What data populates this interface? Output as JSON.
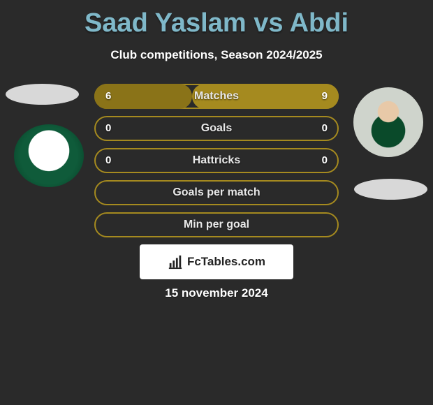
{
  "title": "Saad Yaslam vs Abdi",
  "subtitle": "Club competitions, Season 2024/2025",
  "accent_color": "#a58a1f",
  "accent_fill": "#8a7318",
  "title_color": "#7fb8c9",
  "rows": [
    {
      "label": "Matches",
      "left": "6",
      "right": "9",
      "left_ratio": 0.4
    },
    {
      "label": "Goals",
      "left": "0",
      "right": "0",
      "left_ratio": 0.0
    },
    {
      "label": "Hattricks",
      "left": "0",
      "right": "0",
      "left_ratio": 0.0
    },
    {
      "label": "Goals per match",
      "left": "",
      "right": "",
      "left_ratio": 0.0
    },
    {
      "label": "Min per goal",
      "left": "",
      "right": "",
      "left_ratio": 0.0
    }
  ],
  "brand": "FcTables.com",
  "date": "15 november 2024"
}
